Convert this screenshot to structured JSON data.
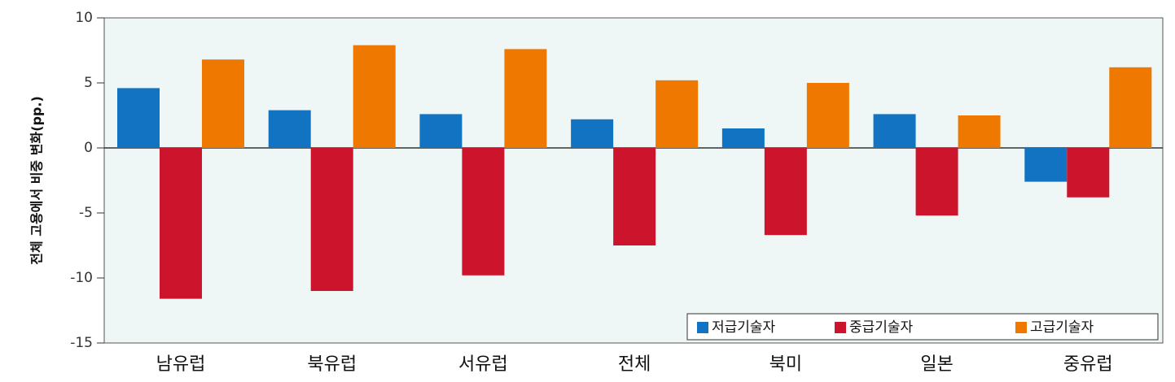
{
  "chart_data": {
    "type": "bar",
    "title": "",
    "xlabel": "",
    "ylabel": "전체 고용에서 비중 변화(pp.)",
    "ylim": [
      -15,
      10
    ],
    "yticks": [
      10,
      5,
      0,
      -5,
      -10,
      -15
    ],
    "ytick_labels": [
      "10",
      "5",
      "0",
      "-5",
      "-10",
      "-15"
    ],
    "grid": false,
    "legend_position": "bottom-right",
    "categories": [
      "남유럽",
      "북유럽",
      "서유럽",
      "전체",
      "북미",
      "일본",
      "중유럽"
    ],
    "series": [
      {
        "name": "저급기술자",
        "color": "#1273c2",
        "values": [
          4.6,
          2.9,
          2.6,
          2.2,
          1.5,
          2.6,
          -2.6
        ]
      },
      {
        "name": "중급기술자",
        "color": "#cc152d",
        "values": [
          -11.6,
          -11.0,
          -9.8,
          -7.5,
          -6.7,
          -5.2,
          -3.8
        ]
      },
      {
        "name": "고급기술자",
        "color": "#ee7800",
        "values": [
          6.8,
          7.9,
          7.6,
          5.2,
          5.0,
          2.5,
          6.2
        ]
      }
    ],
    "plot_background": "#eef7f6"
  }
}
